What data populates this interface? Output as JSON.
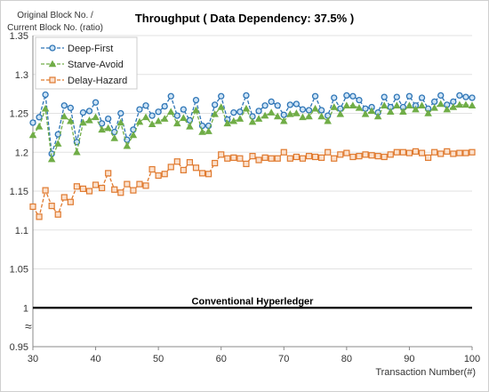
{
  "chart_data": {
    "type": "line",
    "title": "Throughput ( Data Dependency: 37.5% )",
    "ylabel_lines": [
      "Original Block No. /",
      "Current Block No. (ratio)"
    ],
    "xlabel": "Transaction Number(#)",
    "xlim": [
      30,
      100
    ],
    "ylim": [
      0.95,
      1.35
    ],
    "x_ticks": [
      "30",
      "40",
      "50",
      "60",
      "70",
      "80",
      "90",
      "100"
    ],
    "y_ticks": [
      "0.95",
      "1",
      "1.05",
      "1.1",
      "1.15",
      "1.2",
      "1.25",
      "1.3",
      "1.35"
    ],
    "axis_break_symbol": "≈",
    "legend_position": "top-left",
    "baseline": {
      "label": "Conventional Hyperledger",
      "y": 1.0,
      "color": "#000000"
    },
    "x": [
      30,
      31,
      32,
      33,
      34,
      35,
      36,
      37,
      38,
      39,
      40,
      41,
      42,
      43,
      44,
      45,
      46,
      47,
      48,
      49,
      50,
      51,
      52,
      53,
      54,
      55,
      56,
      57,
      58,
      59,
      60,
      61,
      62,
      63,
      64,
      65,
      66,
      67,
      68,
      69,
      70,
      71,
      72,
      73,
      74,
      75,
      76,
      77,
      78,
      79,
      80,
      81,
      82,
      83,
      84,
      85,
      86,
      87,
      88,
      89,
      90,
      91,
      92,
      93,
      94,
      95,
      96,
      97,
      98,
      99,
      100
    ],
    "series": [
      {
        "name": "Deep-First",
        "color": "#2e75b6",
        "marker": "circle",
        "values": [
          1.238,
          1.245,
          1.274,
          1.198,
          1.223,
          1.26,
          1.257,
          1.213,
          1.251,
          1.253,
          1.264,
          1.237,
          1.243,
          1.226,
          1.25,
          1.216,
          1.229,
          1.255,
          1.26,
          1.247,
          1.252,
          1.259,
          1.272,
          1.247,
          1.255,
          1.241,
          1.267,
          1.234,
          1.234,
          1.261,
          1.272,
          1.242,
          1.251,
          1.252,
          1.273,
          1.246,
          1.253,
          1.26,
          1.265,
          1.26,
          1.248,
          1.261,
          1.262,
          1.255,
          1.254,
          1.272,
          1.254,
          1.247,
          1.27,
          1.256,
          1.273,
          1.272,
          1.267,
          1.256,
          1.258,
          1.251,
          1.271,
          1.258,
          1.271,
          1.258,
          1.272,
          1.26,
          1.27,
          1.256,
          1.265,
          1.273,
          1.261,
          1.265,
          1.273,
          1.271,
          1.27
        ]
      },
      {
        "name": "Starve-Avoid",
        "color": "#70ad47",
        "marker": "triangle",
        "values": [
          1.222,
          1.233,
          1.256,
          1.191,
          1.211,
          1.246,
          1.24,
          1.2,
          1.238,
          1.241,
          1.245,
          1.229,
          1.231,
          1.218,
          1.238,
          1.208,
          1.222,
          1.239,
          1.245,
          1.236,
          1.24,
          1.243,
          1.252,
          1.237,
          1.244,
          1.233,
          1.254,
          1.226,
          1.227,
          1.249,
          1.258,
          1.237,
          1.24,
          1.243,
          1.256,
          1.239,
          1.243,
          1.247,
          1.251,
          1.246,
          1.24,
          1.249,
          1.25,
          1.245,
          1.246,
          1.256,
          1.246,
          1.24,
          1.258,
          1.249,
          1.26,
          1.26,
          1.257,
          1.249,
          1.253,
          1.246,
          1.26,
          1.252,
          1.26,
          1.252,
          1.26,
          1.255,
          1.26,
          1.25,
          1.257,
          1.262,
          1.255,
          1.258,
          1.261,
          1.261,
          1.26
        ]
      },
      {
        "name": "Delay-Hazard",
        "color": "#e07a2f",
        "marker": "square",
        "values": [
          1.13,
          1.117,
          1.151,
          1.131,
          1.12,
          1.142,
          1.136,
          1.156,
          1.153,
          1.15,
          1.158,
          1.154,
          1.173,
          1.152,
          1.148,
          1.159,
          1.151,
          1.159,
          1.157,
          1.178,
          1.17,
          1.172,
          1.181,
          1.188,
          1.177,
          1.187,
          1.18,
          1.173,
          1.172,
          1.186,
          1.197,
          1.192,
          1.193,
          1.192,
          1.185,
          1.195,
          1.19,
          1.193,
          1.192,
          1.192,
          1.2,
          1.192,
          1.194,
          1.192,
          1.195,
          1.194,
          1.193,
          1.2,
          1.192,
          1.197,
          1.199,
          1.194,
          1.195,
          1.197,
          1.196,
          1.195,
          1.194,
          1.197,
          1.2,
          1.2,
          1.199,
          1.201,
          1.199,
          1.193,
          1.2,
          1.198,
          1.201,
          1.198,
          1.199,
          1.199,
          1.2
        ]
      }
    ]
  }
}
